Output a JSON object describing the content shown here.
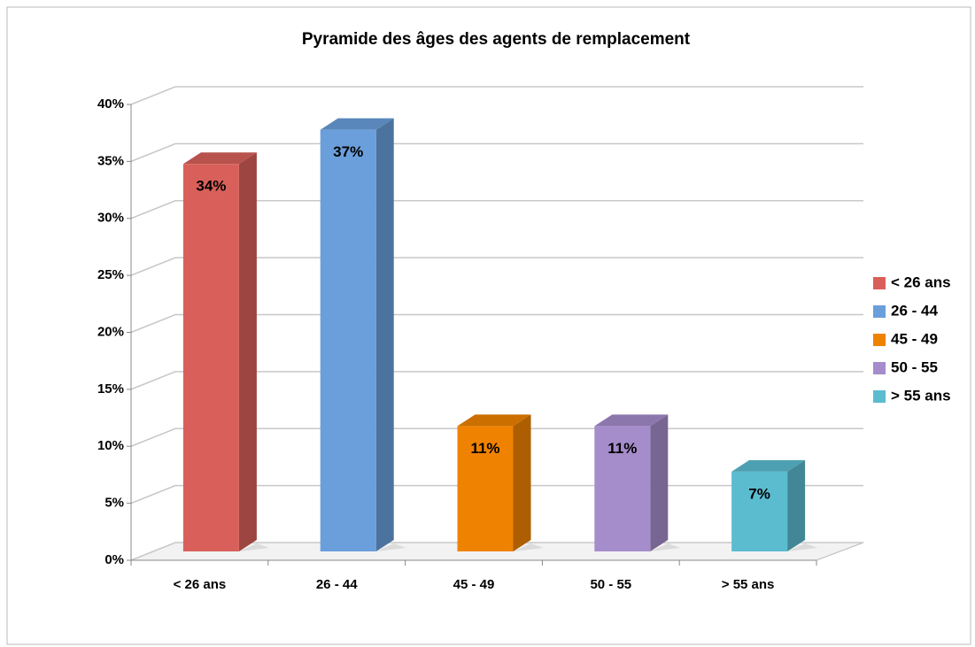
{
  "chart_data": {
    "type": "bar3d",
    "title": "Pyramide des âges des agents de remplacement",
    "categories": [
      "< 26 ans",
      "26 - 44",
      "45 - 49",
      "50 - 55",
      "> 55 ans"
    ],
    "values": [
      34,
      37,
      11,
      11,
      7
    ],
    "value_labels": [
      "34%",
      "37%",
      "11%",
      "11%",
      "7%"
    ],
    "colors": [
      "#d9605a",
      "#6a9fdc",
      "#ef8200",
      "#a58ccb",
      "#5bbcd0"
    ],
    "ylim": [
      0,
      40
    ],
    "yticks": [
      {
        "value": 0,
        "label": "0%"
      },
      {
        "value": 5,
        "label": "5%"
      },
      {
        "value": 10,
        "label": "10%"
      },
      {
        "value": 15,
        "label": "15%"
      },
      {
        "value": 20,
        "label": "20%"
      },
      {
        "value": 25,
        "label": "25%"
      },
      {
        "value": 30,
        "label": "30%"
      },
      {
        "value": 35,
        "label": "35%"
      },
      {
        "value": 40,
        "label": "40%"
      }
    ],
    "grid": true,
    "legend": "right"
  }
}
